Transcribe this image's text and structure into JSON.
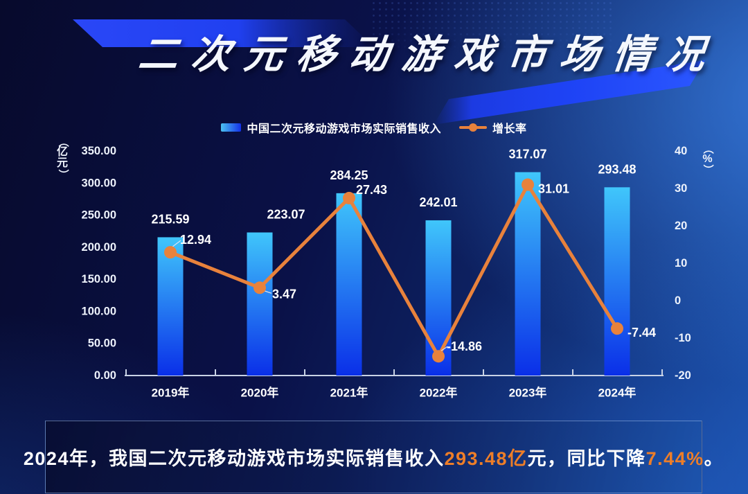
{
  "title": "二次元移动游戏市场情况",
  "legend": {
    "bar": {
      "label": "中国二次元移动游戏市场实际销售收入"
    },
    "line": {
      "label": "增长率"
    }
  },
  "chart_data": {
    "type": "bar",
    "subtype": "bar+line combo",
    "categories": [
      "2019年",
      "2020年",
      "2021年",
      "2022年",
      "2023年",
      "2024年"
    ],
    "series": [
      {
        "name": "中国二次元移动游戏市场实际销售收入",
        "type": "bar",
        "axis": "left",
        "unit": "亿元",
        "values": [
          215.59,
          223.07,
          284.25,
          242.01,
          317.07,
          293.48
        ]
      },
      {
        "name": "增长率",
        "type": "line",
        "axis": "right",
        "unit": "%",
        "values": [
          12.94,
          3.47,
          27.43,
          -14.86,
          31.01,
          -7.44
        ]
      }
    ],
    "left_axis": {
      "unit": "（亿元）",
      "min": 0,
      "max": 350,
      "ticks": [
        "350.00",
        "300.00",
        "250.00",
        "200.00",
        "150.00",
        "100.00",
        "50.00",
        "0.00"
      ]
    },
    "right_axis": {
      "unit": "（%）",
      "min": -20,
      "max": 40,
      "ticks": [
        "40",
        "30",
        "20",
        "10",
        "0",
        "-10",
        "-20"
      ]
    },
    "grid": false,
    "legend_position": "top",
    "data_labels": true
  },
  "footer": {
    "parts": [
      {
        "text": "2024年，我国二次元移动游戏市场实际销售收入",
        "highlight": false
      },
      {
        "text": "293.48亿",
        "highlight": true
      },
      {
        "text": "元，同比下降",
        "highlight": false
      },
      {
        "text": "7.44%",
        "highlight": true
      },
      {
        "text": "。",
        "highlight": false
      }
    ]
  },
  "colors": {
    "accent_orange": "#e8823c",
    "footer_orange": "#ee7e28",
    "banner_blue": "#2547f7",
    "bar_top": "#40c6fb",
    "bar_bottom": "#0a2fe8",
    "axis_line": "#c9d3e6",
    "text": "#ffffff"
  }
}
